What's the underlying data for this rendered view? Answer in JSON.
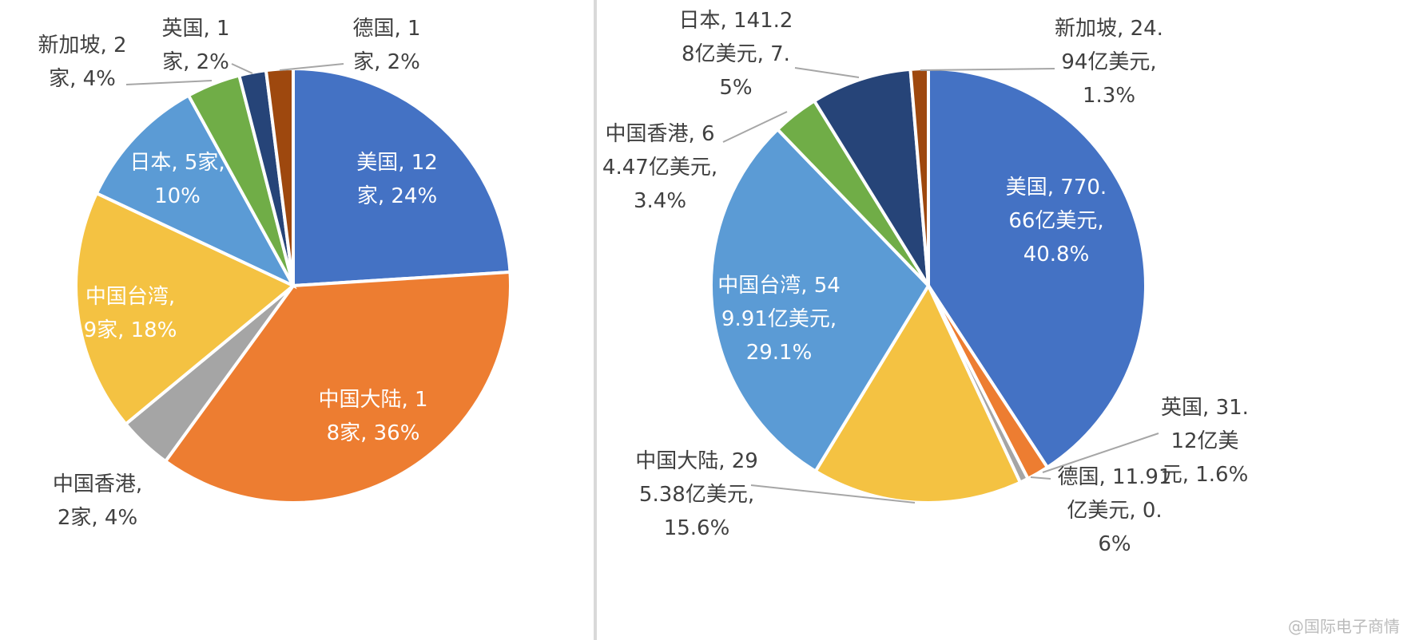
{
  "chart_data": [
    {
      "type": "pie",
      "categories": [
        "美国",
        "中国大陆",
        "中国香港",
        "中国台湾",
        "日本",
        "新加坡",
        "英国",
        "德国"
      ],
      "values": [
        12,
        18,
        2,
        9,
        5,
        2,
        1,
        1
      ],
      "value_labels": [
        "美国, 12家, 24%",
        "中国大陆, 18家, 36%",
        "中国香港, 2家, 4%",
        "中国台湾, 9家, 18%",
        "日本, 5家, 10%",
        "新加坡, 2家, 4%",
        "英国, 1家, 2%",
        "德国, 1家, 2%"
      ],
      "colors": [
        "#4472c4",
        "#ed7d31",
        "#a5a5a5",
        "#f4c242",
        "#5b9bd5",
        "#70ad47",
        "#264478",
        "#9e480e"
      ]
    },
    {
      "type": "pie",
      "categories": [
        "美国",
        "英国",
        "德国",
        "中国大陆",
        "中国台湾",
        "中国香港",
        "日本",
        "新加坡"
      ],
      "values": [
        770.66,
        31.12,
        11.91,
        295.38,
        549.91,
        64.47,
        141.28,
        24.94
      ],
      "value_labels": [
        "美国, 770.66亿美元, 40.8%",
        "英国, 31.12亿美元, 1.6%",
        "德国, 11.91亿美元, 0.6%",
        "中国大陆, 295.38亿美元, 15.6%",
        "中国台湾, 549.91亿美元, 29.1%",
        "中国香港, 64.47亿美元, 3.4%",
        "日本, 141.28亿美元, 7.5%",
        "新加坡, 24.94亿美元, 1.3%"
      ],
      "colors": [
        "#4472c4",
        "#ed7d31",
        "#a5a5a5",
        "#f4c242",
        "#5b9bd5",
        "#70ad47",
        "#264478",
        "#9e480e"
      ]
    }
  ],
  "watermark": "@国际电子商情"
}
